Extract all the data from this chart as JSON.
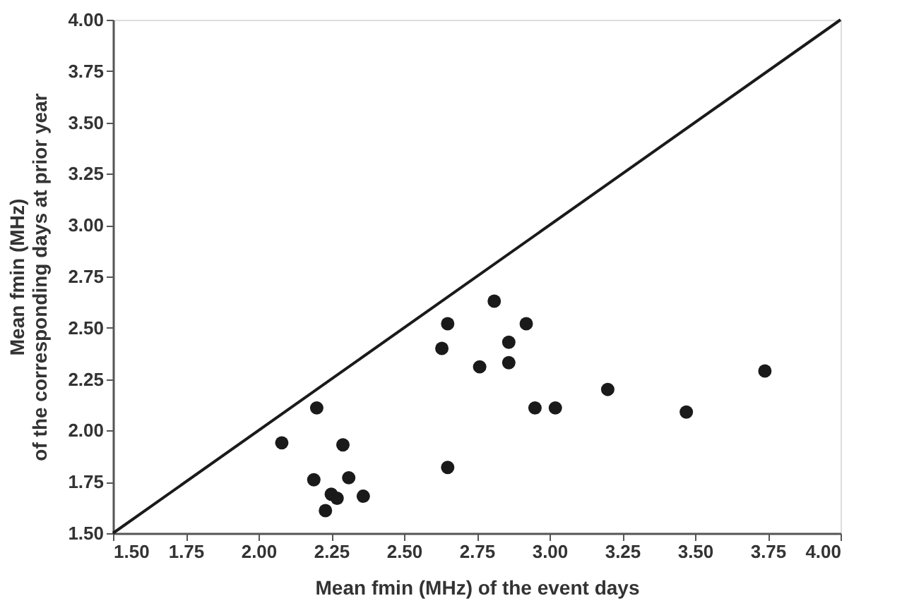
{
  "chart_data": {
    "type": "scatter",
    "xlabel": "Mean fmin (MHz) of the event days",
    "ylabel": "Mean fmin (MHz)\nof the corresponding days at prior year",
    "xlim": [
      1.5,
      4.0
    ],
    "ylim": [
      1.5,
      4.0
    ],
    "xticks": [
      {
        "value": 1.5,
        "label": "1.50"
      },
      {
        "value": 1.75,
        "label": "1.75"
      },
      {
        "value": 2.0,
        "label": "2.00"
      },
      {
        "value": 2.25,
        "label": "2.25"
      },
      {
        "value": 2.5,
        "label": "2.50"
      },
      {
        "value": 2.75,
        "label": "2.75"
      },
      {
        "value": 3.0,
        "label": "3.00"
      },
      {
        "value": 3.25,
        "label": "3.25"
      },
      {
        "value": 3.5,
        "label": "3.50"
      },
      {
        "value": 3.75,
        "label": "3.75"
      },
      {
        "value": 4.0,
        "label": "4.00"
      }
    ],
    "yticks": [
      {
        "value": 1.5,
        "label": "1.50"
      },
      {
        "value": 1.75,
        "label": "1.75"
      },
      {
        "value": 2.0,
        "label": "2.00"
      },
      {
        "value": 2.25,
        "label": "2.25"
      },
      {
        "value": 2.5,
        "label": "2.50"
      },
      {
        "value": 2.75,
        "label": "2.75"
      },
      {
        "value": 3.0,
        "label": "3.00"
      },
      {
        "value": 3.25,
        "label": "3.25"
      },
      {
        "value": 3.5,
        "label": "3.50"
      },
      {
        "value": 3.75,
        "label": "3.75"
      },
      {
        "value": 4.0,
        "label": "4.00"
      }
    ],
    "grid": false,
    "series": [
      {
        "marker": "circle",
        "color": "#1a1a1a",
        "x": [
          2.08,
          2.2,
          2.29,
          2.19,
          2.31,
          2.25,
          2.27,
          2.23,
          2.36,
          2.65,
          2.63,
          2.65,
          2.76,
          2.81,
          2.86,
          2.86,
          2.92,
          2.95,
          3.02,
          3.2,
          3.47,
          3.74
        ],
        "values": [
          1.94,
          2.11,
          1.93,
          1.76,
          1.77,
          1.69,
          1.67,
          1.61,
          1.68,
          1.82,
          2.4,
          2.52,
          2.31,
          2.63,
          2.43,
          2.33,
          2.52,
          2.11,
          2.11,
          2.2,
          2.09,
          2.29
        ]
      },
      {
        "type": "line",
        "color": "#1a1a1a",
        "x": [
          1.5,
          4.0
        ],
        "values": [
          1.5,
          4.0
        ],
        "line_style": "solid"
      }
    ]
  }
}
